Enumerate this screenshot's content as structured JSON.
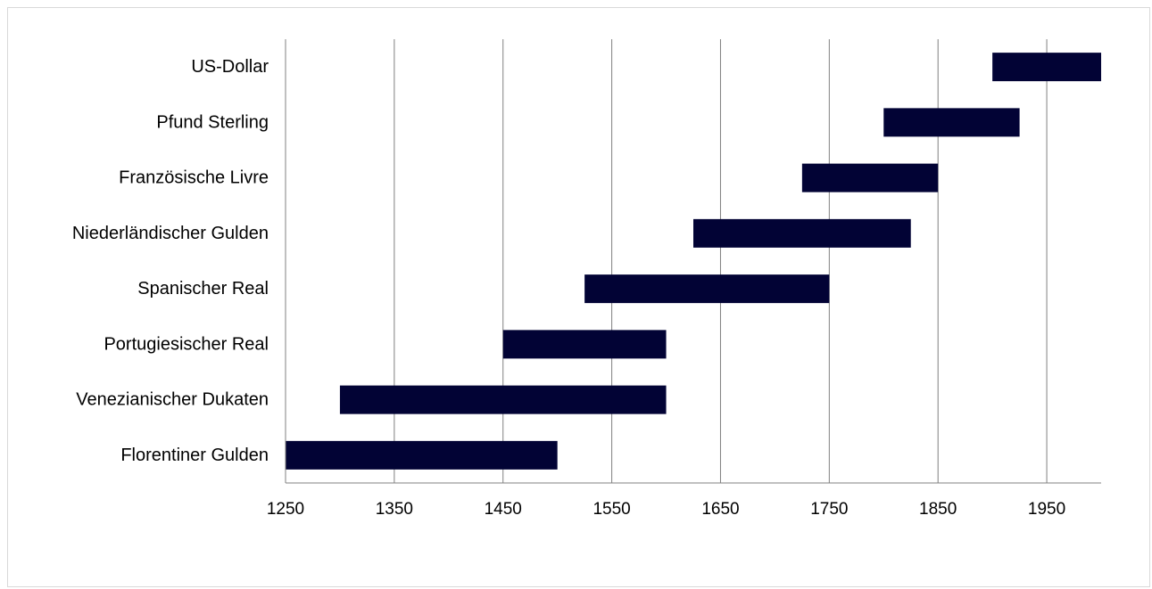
{
  "chart_data": {
    "type": "bar",
    "orientation": "horizontal",
    "categories": [
      "US-Dollar",
      "Pfund Sterling",
      "Französische Livre",
      "Niederländischer Gulden",
      "Spanischer Real",
      "Portugiesischer Real",
      "Venezianischer Dukaten",
      "Florentiner Gulden"
    ],
    "ranges": [
      [
        1900,
        2000
      ],
      [
        1800,
        1925
      ],
      [
        1725,
        1850
      ],
      [
        1625,
        1825
      ],
      [
        1525,
        1750
      ],
      [
        1450,
        1600
      ],
      [
        1300,
        1600
      ],
      [
        1250,
        1500
      ]
    ],
    "xlim": [
      1250,
      2000
    ],
    "xticks": [
      1250,
      1350,
      1450,
      1550,
      1650,
      1750,
      1850,
      1950
    ],
    "title": "",
    "xlabel": "",
    "ylabel": "",
    "grid": "vertical",
    "legend": "none",
    "bar_color": "#020335",
    "grid_color": "#808080"
  }
}
